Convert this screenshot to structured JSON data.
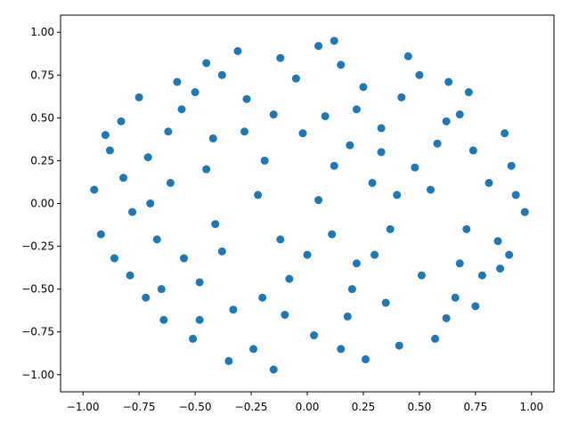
{
  "chart_data": {
    "type": "scatter",
    "color": "#1f77b4",
    "x": [
      0.12,
      -0.45,
      0.63,
      -0.88,
      0.91,
      -0.72,
      0.41,
      -0.15,
      0.05,
      0.33,
      -0.27,
      0.78,
      -0.61,
      0.22,
      -0.38,
      0.55,
      -0.92,
      0.97,
      -0.05,
      0.68,
      -0.51,
      0.18,
      -0.83,
      0.45,
      -0.19,
      0.86,
      -0.67,
      0.29,
      -0.33,
      0.62,
      -0.08,
      0.74,
      -0.56,
      0.08,
      -0.79,
      0.37,
      -0.24,
      0.51,
      -0.95,
      0.15,
      -0.42,
      0.88,
      -0.12,
      0.58,
      -0.71,
      0.26,
      -0.48,
      0.71,
      -0.31,
      0.03,
      0.42,
      -0.64,
      0.93,
      -0.86,
      0.19,
      -0.22,
      0.66,
      -0.58,
      0.35,
      -0.02,
      0.81,
      -0.75,
      0.11,
      -0.41,
      0.48,
      -0.15,
      0.25,
      -0.55,
      0.72,
      -0.9,
      0.05,
      -0.35,
      0.57,
      -0.7,
      0.3,
      -0.2,
      0.85,
      -0.45,
      0.12,
      -0.62,
      0.4,
      -0.1,
      0.62,
      -0.82,
      0.2,
      -0.28,
      0.75,
      -0.5,
      0.0,
      0.5,
      -0.65,
      0.9,
      -0.38,
      0.15,
      -0.78,
      0.33,
      -0.12,
      0.68,
      -0.48,
      0.22
    ],
    "y": [
      0.95,
      0.82,
      0.71,
      0.31,
      0.22,
      -0.55,
      -0.83,
      -0.97,
      0.02,
      0.44,
      0.61,
      -0.42,
      0.12,
      -0.35,
      -0.28,
      0.08,
      -0.18,
      -0.05,
      0.73,
      0.52,
      -0.79,
      -0.66,
      0.48,
      0.86,
      0.25,
      -0.38,
      -0.21,
      0.12,
      -0.62,
      -0.67,
      -0.44,
      0.31,
      0.55,
      0.51,
      -0.42,
      -0.15,
      -0.85,
      -0.42,
      0.08,
      0.81,
      0.38,
      0.41,
      -0.21,
      0.35,
      0.27,
      -0.91,
      -0.46,
      -0.15,
      0.89,
      -0.77,
      0.62,
      -0.68,
      0.05,
      -0.32,
      0.34,
      0.05,
      -0.55,
      0.71,
      -0.58,
      0.41,
      0.12,
      0.62,
      -0.18,
      -0.12,
      0.21,
      0.52,
      0.68,
      -0.32,
      0.65,
      0.4,
      0.92,
      -0.92,
      -0.79,
      0.0,
      -0.3,
      -0.55,
      -0.22,
      0.2,
      0.22,
      0.42,
      0.05,
      -0.65,
      0.48,
      0.15,
      -0.5,
      0.42,
      -0.6,
      0.65,
      -0.3,
      0.75,
      -0.5,
      -0.3,
      0.75,
      -0.85,
      -0.05,
      0.3,
      0.85,
      -0.35,
      -0.68,
      0.55
    ],
    "xlim": [
      -1.1,
      1.1
    ],
    "ylim": [
      -1.1,
      1.1
    ],
    "xticks": [
      {
        "value": -1,
        "label": "−1.00"
      },
      {
        "value": -0.75,
        "label": "−0.75"
      },
      {
        "value": -0.5,
        "label": "−0.50"
      },
      {
        "value": -0.25,
        "label": "−0.25"
      },
      {
        "value": 0,
        "label": "0.00"
      },
      {
        "value": 0.25,
        "label": "0.25"
      },
      {
        "value": 0.5,
        "label": "0.50"
      },
      {
        "value": 0.75,
        "label": "0.75"
      },
      {
        "value": 1,
        "label": "1.00"
      }
    ],
    "yticks": [
      {
        "value": -1,
        "label": "−1.00"
      },
      {
        "value": -0.75,
        "label": "−0.75"
      },
      {
        "value": -0.5,
        "label": "−0.50"
      },
      {
        "value": -0.25,
        "label": "−0.25"
      },
      {
        "value": 0,
        "label": "0.00"
      },
      {
        "value": 0.25,
        "label": "0.25"
      },
      {
        "value": 0.5,
        "label": "0.50"
      },
      {
        "value": 0.75,
        "label": "0.75"
      },
      {
        "value": 1,
        "label": "1.00"
      }
    ]
  }
}
